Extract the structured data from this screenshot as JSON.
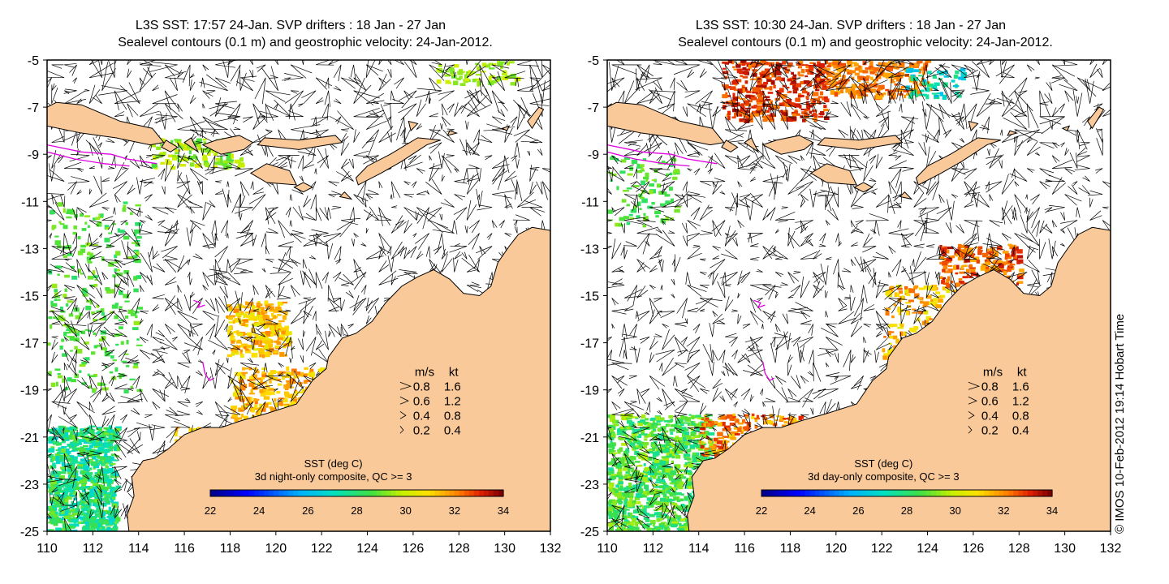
{
  "panels": [
    {
      "title_line1": "L3S SST: 17:57 24-Jan. SVP drifters : 18 Jan - 27 Jan",
      "title_line2": "Sealevel contours (0.1 m) and geostrophic velocity: 24-Jan-2012.",
      "colorbar_title": "SST (deg C)",
      "colorbar_subtitle": "3d night-only composite, QC >= 3",
      "mode": "night"
    },
    {
      "title_line1": "L3S SST: 10:30 24-Jan. SVP drifters : 18 Jan - 27 Jan",
      "title_line2": "Sealevel contours (0.1 m) and geostrophic velocity: 24-Jan-2012.",
      "colorbar_title": "SST (deg C)",
      "colorbar_subtitle": "3d day-only composite, QC >= 3",
      "mode": "day"
    }
  ],
  "map": {
    "lon_range": [
      110,
      132
    ],
    "lat_range": [
      -25,
      -5
    ],
    "lon_ticks": [
      "110",
      "112",
      "114",
      "116",
      "118",
      "120",
      "122",
      "124",
      "126",
      "128",
      "130",
      "132"
    ],
    "lat_ticks": [
      "-5",
      "-7",
      "-9",
      "-11",
      "-13",
      "-15",
      "-17",
      "-19",
      "-21",
      "-23",
      "-25"
    ]
  },
  "colorbar": {
    "range": [
      22,
      34
    ],
    "ticks": [
      "22",
      "24",
      "26",
      "28",
      "30",
      "32",
      "34"
    ]
  },
  "legend": {
    "header_unit1": "m/s",
    "header_unit2": "kt",
    "rows": [
      {
        "ms": "0.8",
        "kt": "1.6"
      },
      {
        "ms": "0.6",
        "kt": "1.2"
      },
      {
        "ms": "0.4",
        "kt": "0.8"
      },
      {
        "ms": "0.2",
        "kt": "0.4"
      }
    ]
  },
  "credit": "© IMOS 10-Feb-2012 19:14 Hobart Time",
  "colors": {
    "land": "#f9c99a",
    "drifter": "#e000e0",
    "vector": "#000000"
  }
}
